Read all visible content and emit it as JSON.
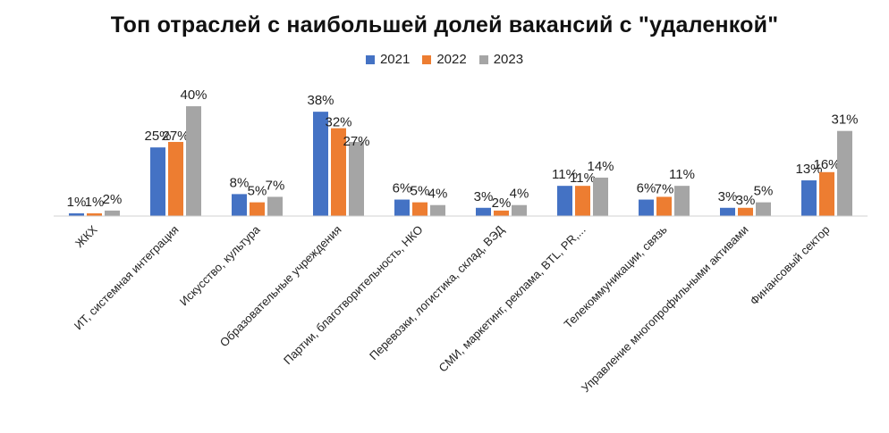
{
  "chart_data": {
    "type": "bar",
    "title": "Топ отраслей с наибольшей долей вакансий с \"удаленкой\"",
    "categories": [
      "ЖКХ",
      "ИТ, системная интеграция",
      "Искусство, культура",
      "Образовательные учреждения",
      "Партии, благотворительность, НКО",
      "Перевозки, логистика, склад, ВЭД",
      "СМИ, маркетинг, реклама, BTL, PR,...",
      "Телекоммуникации, связь",
      "Управление многопрофильными активами",
      "Финансовый сектор"
    ],
    "series": [
      {
        "name": "2021",
        "color": "#4472C4",
        "values": [
          1,
          25,
          8,
          38,
          6,
          3,
          11,
          6,
          3,
          13
        ],
        "labels": [
          "1%",
          "25%",
          "8%",
          "38%",
          "6%",
          "3%",
          "11%",
          "6%",
          "3%",
          "13%"
        ]
      },
      {
        "name": "2022",
        "color": "#ED7D31",
        "values": [
          1,
          27,
          5,
          32,
          5,
          2,
          11,
          7,
          3,
          16
        ],
        "labels": [
          "1%",
          "27%",
          "5%",
          "32%",
          "5%",
          "2%",
          "11%",
          "7%",
          "3%",
          "16%"
        ]
      },
      {
        "name": "2023",
        "color": "#A5A5A5",
        "values": [
          2,
          40,
          7,
          27,
          4,
          4,
          14,
          11,
          5,
          31
        ],
        "labels": [
          "2%",
          "40%",
          "7%",
          "27%",
          "4%",
          "4%",
          "14%",
          "11%",
          "5%",
          "31%"
        ]
      }
    ],
    "xlabel": "",
    "ylabel": "",
    "ylim": [
      0,
      40
    ],
    "grid": false,
    "legend": "top"
  }
}
